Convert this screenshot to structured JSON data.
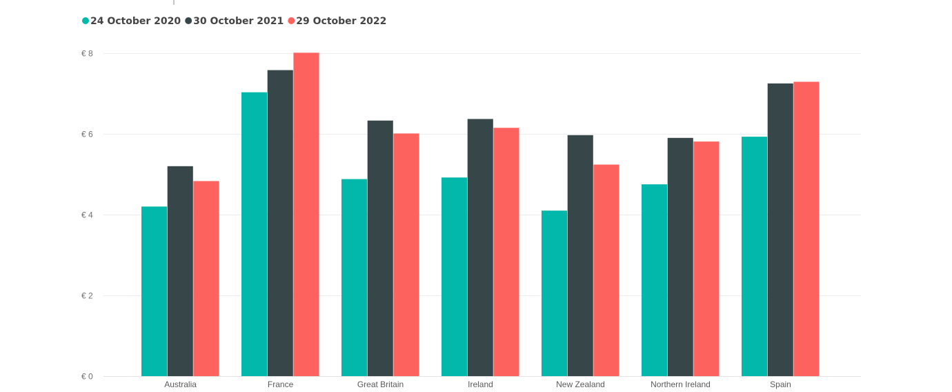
{
  "chart_data": {
    "type": "bar",
    "categories": [
      "Australia",
      "France",
      "Great Britain",
      "Ireland",
      "New Zealand",
      "Northern Ireland",
      "Spain"
    ],
    "series": [
      {
        "name": "24 October 2020",
        "color": "#01B8AA",
        "values": [
          4.2,
          7.03,
          4.88,
          4.92,
          4.1,
          4.75,
          5.93
        ]
      },
      {
        "name": "30 October 2021",
        "color": "#374649",
        "values": [
          5.2,
          7.58,
          6.33,
          6.37,
          5.97,
          5.9,
          7.25
        ]
      },
      {
        "name": "29 October 2022",
        "color": "#FD625E",
        "values": [
          4.83,
          8.01,
          6.01,
          6.15,
          5.24,
          5.81,
          7.29
        ]
      }
    ],
    "y_ticks": [
      "€ 0",
      "€ 2",
      "€ 4",
      "€ 6",
      "€ 8"
    ],
    "y_tick_values": [
      0,
      2,
      4,
      6,
      8
    ],
    "ylim": [
      0,
      8
    ],
    "grid": true,
    "legend_position": "top-left",
    "title": "",
    "xlabel": "",
    "ylabel": ""
  }
}
